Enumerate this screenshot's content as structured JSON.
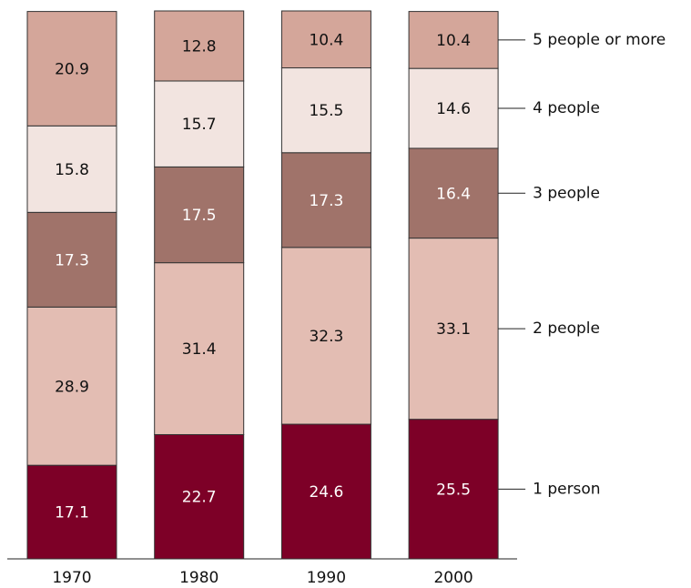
{
  "chart_data": {
    "type": "stacked-bar",
    "categories": [
      "1970",
      "1980",
      "1990",
      "2000"
    ],
    "series": [
      {
        "name": "1 person",
        "color": "#7d0027",
        "values": [
          17.1,
          22.7,
          24.6,
          25.5
        ]
      },
      {
        "name": "2 people",
        "color": "#e3bdb3",
        "values": [
          28.9,
          31.4,
          32.3,
          33.1
        ]
      },
      {
        "name": "3 people",
        "color": "#a0736a",
        "values": [
          17.3,
          17.5,
          17.3,
          16.4
        ]
      },
      {
        "name": "4 people",
        "color": "#f2e4e0",
        "values": [
          15.8,
          15.7,
          15.5,
          14.6
        ]
      },
      {
        "name": "5 people or more",
        "color": "#d4a69a",
        "values": [
          20.9,
          12.8,
          10.4,
          10.4
        ]
      }
    ]
  }
}
